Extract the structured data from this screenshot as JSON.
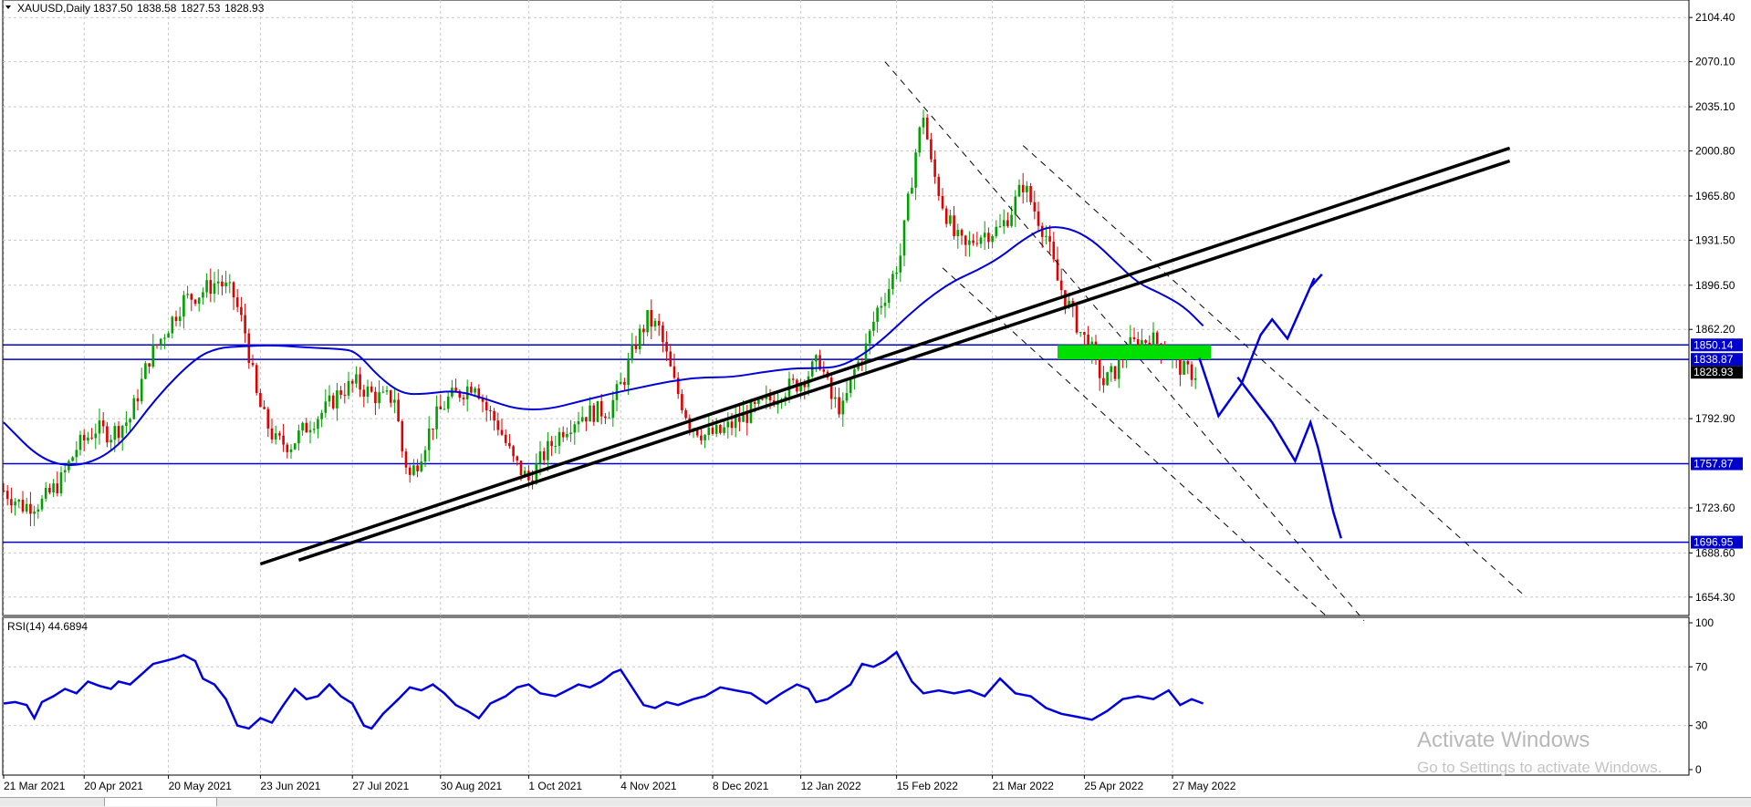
{
  "chart_data": [
    {
      "type": "candlestick",
      "header": {
        "symbol_tf": "XAUUSD,Daily",
        "open": "1837.50",
        "high": "1838.58",
        "low": "1827.53",
        "close": "1828.93"
      },
      "ylim": [
        1640,
        2118
      ],
      "y_ticks": [
        "2104.40",
        "2070.10",
        "2035.10",
        "2000.80",
        "1965.80",
        "1931.50",
        "1896.50",
        "1862.20",
        "1792.90",
        "1723.60",
        "1688.60",
        "1654.30"
      ],
      "x_ticks": [
        "21 Mar 2021",
        "20 Apr 2021",
        "20 May 2021",
        "23 Jun 2021",
        "27 Jul 2021",
        "30 Aug 2021",
        "1 Oct 2021",
        "4 Nov 2021",
        "8 Dec 2021",
        "12 Jan 2022",
        "15 Feb 2022",
        "21 Mar 2022",
        "25 Apr 2022",
        "27 May 2022"
      ],
      "x_tick_index": [
        0,
        21,
        43,
        67,
        91,
        114,
        137,
        161,
        185,
        208,
        233,
        258,
        282,
        305
      ],
      "close_path": [
        [
          0,
          1737
        ],
        [
          5,
          1725
        ],
        [
          10,
          1728
        ],
        [
          15,
          1745
        ],
        [
          19,
          1770
        ],
        [
          24,
          1785
        ],
        [
          28,
          1781
        ],
        [
          33,
          1793
        ],
        [
          38,
          1840
        ],
        [
          43,
          1865
        ],
        [
          47,
          1885
        ],
        [
          51,
          1890
        ],
        [
          56,
          1900
        ],
        [
          60,
          1888
        ],
        [
          63,
          1860
        ],
        [
          66,
          1810
        ],
        [
          68,
          1793
        ],
        [
          71,
          1775
        ],
        [
          75,
          1773
        ],
        [
          80,
          1790
        ],
        [
          84,
          1800
        ],
        [
          88,
          1815
        ],
        [
          92,
          1820
        ],
        [
          96,
          1812
        ],
        [
          99,
          1808
        ],
        [
          102,
          1810
        ],
        [
          104,
          1768
        ],
        [
          106,
          1748
        ],
        [
          108,
          1760
        ],
        [
          112,
          1790
        ],
        [
          116,
          1808
        ],
        [
          120,
          1815
        ],
        [
          123,
          1822
        ],
        [
          126,
          1800
        ],
        [
          129,
          1788
        ],
        [
          133,
          1760
        ],
        [
          137,
          1745
        ],
        [
          141,
          1765
        ],
        [
          146,
          1785
        ],
        [
          150,
          1795
        ],
        [
          154,
          1798
        ],
        [
          158,
          1800
        ],
        [
          162,
          1825
        ],
        [
          165,
          1852
        ],
        [
          168,
          1870
        ],
        [
          171,
          1862
        ],
        [
          175,
          1820
        ],
        [
          179,
          1790
        ],
        [
          183,
          1780
        ],
        [
          187,
          1782
        ],
        [
          191,
          1790
        ],
        [
          195,
          1798
        ],
        [
          199,
          1805
        ],
        [
          203,
          1815
        ],
        [
          207,
          1820
        ],
        [
          210,
          1828
        ],
        [
          213,
          1838
        ],
        [
          216,
          1808
        ],
        [
          219,
          1800
        ],
        [
          222,
          1830
        ],
        [
          225,
          1848
        ],
        [
          228,
          1878
        ],
        [
          231,
          1895
        ],
        [
          234,
          1920
        ],
        [
          236,
          1960
        ],
        [
          238,
          2000
        ],
        [
          240,
          2030
        ],
        [
          242,
          1990
        ],
        [
          245,
          1960
        ],
        [
          248,
          1935
        ],
        [
          251,
          1925
        ],
        [
          254,
          1935
        ],
        [
          257,
          1938
        ],
        [
          260,
          1940
        ],
        [
          263,
          1955
        ],
        [
          266,
          1975
        ],
        [
          269,
          1955
        ],
        [
          272,
          1935
        ],
        [
          275,
          1900
        ],
        [
          278,
          1880
        ],
        [
          281,
          1860
        ],
        [
          284,
          1845
        ],
        [
          287,
          1820
        ],
        [
          290,
          1830
        ],
        [
          293,
          1848
        ],
        [
          296,
          1852
        ],
        [
          299,
          1855
        ],
        [
          302,
          1850
        ],
        [
          305,
          1840
        ],
        [
          308,
          1830
        ],
        [
          311,
          1828
        ]
      ],
      "ma_path": [
        [
          0,
          1790
        ],
        [
          10,
          1760
        ],
        [
          20,
          1755
        ],
        [
          30,
          1770
        ],
        [
          40,
          1810
        ],
        [
          50,
          1840
        ],
        [
          56,
          1848
        ],
        [
          62,
          1849
        ],
        [
          70,
          1850
        ],
        [
          80,
          1848
        ],
        [
          88,
          1847
        ],
        [
          92,
          1845
        ],
        [
          98,
          1825
        ],
        [
          104,
          1812
        ],
        [
          110,
          1812
        ],
        [
          118,
          1815
        ],
        [
          126,
          1808
        ],
        [
          134,
          1800
        ],
        [
          142,
          1800
        ],
        [
          150,
          1806
        ],
        [
          158,
          1812
        ],
        [
          166,
          1817
        ],
        [
          174,
          1822
        ],
        [
          182,
          1825
        ],
        [
          190,
          1825
        ],
        [
          198,
          1829
        ],
        [
          206,
          1832
        ],
        [
          212,
          1832
        ],
        [
          218,
          1833
        ],
        [
          224,
          1842
        ],
        [
          230,
          1856
        ],
        [
          236,
          1873
        ],
        [
          242,
          1888
        ],
        [
          248,
          1900
        ],
        [
          254,
          1908
        ],
        [
          260,
          1918
        ],
        [
          266,
          1932
        ],
        [
          272,
          1942
        ],
        [
          278,
          1941
        ],
        [
          284,
          1932
        ],
        [
          290,
          1915
        ],
        [
          296,
          1898
        ],
        [
          302,
          1890
        ],
        [
          308,
          1880
        ],
        [
          313,
          1865
        ]
      ],
      "horizontal_levels": [
        {
          "label": "1850.14",
          "value": 1850.14
        },
        {
          "label": "1838.87",
          "value": 1838.87
        },
        {
          "label": "1757.87",
          "value": 1757.87
        },
        {
          "label": "1696.95",
          "value": 1696.95
        }
      ],
      "last_price_label": "1828.93",
      "trend_lines": [
        {
          "from": [
            67,
            1680
          ],
          "to": [
            393,
            2003
          ]
        },
        {
          "from": [
            77,
            1683
          ],
          "to": [
            393,
            1993
          ]
        }
      ],
      "channel_lines": [
        {
          "from": [
            230,
            2070
          ],
          "to": [
            355,
            1636
          ]
        },
        {
          "from": [
            266,
            2005
          ],
          "to": [
            397,
            1655
          ]
        },
        {
          "from": [
            245,
            1910
          ],
          "to": [
            345,
            1640
          ]
        }
      ],
      "zone": {
        "x": [
          275,
          315
        ],
        "y": [
          1839,
          1850
        ],
        "color": "#00e000"
      },
      "projection_path": [
        [
          312,
          1840
        ],
        [
          317,
          1795
        ],
        [
          323,
          1820
        ],
        [
          328,
          1858
        ],
        [
          331,
          1870
        ],
        [
          335,
          1855
        ],
        [
          342,
          1902
        ],
        [
          341,
          1895
        ],
        [
          344,
          1905
        ]
      ],
      "projection_path_2": [
        [
          322,
          1825
        ],
        [
          331,
          1790
        ],
        [
          337,
          1760
        ],
        [
          341,
          1790
        ],
        [
          343,
          1770
        ],
        [
          347,
          1720
        ],
        [
          349,
          1700
        ]
      ]
    },
    {
      "type": "line",
      "title": "RSI(14) 44.6894",
      "ylim": [
        0,
        100
      ],
      "y_ticks": [
        "100",
        "70",
        "30",
        "0"
      ],
      "values_path": [
        [
          0,
          45
        ],
        [
          3,
          46
        ],
        [
          6,
          44
        ],
        [
          8,
          35
        ],
        [
          10,
          46
        ],
        [
          13,
          50
        ],
        [
          16,
          55
        ],
        [
          19,
          52
        ],
        [
          22,
          60
        ],
        [
          25,
          57
        ],
        [
          28,
          55
        ],
        [
          30,
          60
        ],
        [
          33,
          58
        ],
        [
          36,
          65
        ],
        [
          39,
          72
        ],
        [
          42,
          74
        ],
        [
          45,
          76
        ],
        [
          47,
          78
        ],
        [
          50,
          74
        ],
        [
          52,
          62
        ],
        [
          55,
          58
        ],
        [
          58,
          48
        ],
        [
          61,
          30
        ],
        [
          64,
          28
        ],
        [
          67,
          35
        ],
        [
          70,
          32
        ],
        [
          73,
          44
        ],
        [
          76,
          55
        ],
        [
          79,
          48
        ],
        [
          82,
          50
        ],
        [
          85,
          58
        ],
        [
          88,
          50
        ],
        [
          91,
          45
        ],
        [
          94,
          30
        ],
        [
          96,
          28
        ],
        [
          99,
          38
        ],
        [
          103,
          48
        ],
        [
          106,
          56
        ],
        [
          109,
          54
        ],
        [
          112,
          58
        ],
        [
          115,
          52
        ],
        [
          118,
          44
        ],
        [
          121,
          40
        ],
        [
          124,
          35
        ],
        [
          127,
          45
        ],
        [
          131,
          50
        ],
        [
          134,
          56
        ],
        [
          137,
          58
        ],
        [
          140,
          52
        ],
        [
          144,
          50
        ],
        [
          147,
          54
        ],
        [
          150,
          58
        ],
        [
          153,
          56
        ],
        [
          156,
          60
        ],
        [
          159,
          66
        ],
        [
          161,
          68
        ],
        [
          164,
          56
        ],
        [
          167,
          44
        ],
        [
          170,
          42
        ],
        [
          173,
          46
        ],
        [
          176,
          44
        ],
        [
          180,
          48
        ],
        [
          183,
          50
        ],
        [
          187,
          56
        ],
        [
          191,
          54
        ],
        [
          195,
          52
        ],
        [
          199,
          45
        ],
        [
          203,
          52
        ],
        [
          207,
          58
        ],
        [
          210,
          55
        ],
        [
          212,
          46
        ],
        [
          215,
          48
        ],
        [
          218,
          53
        ],
        [
          221,
          58
        ],
        [
          224,
          72
        ],
        [
          227,
          70
        ],
        [
          230,
          74
        ],
        [
          233,
          80
        ],
        [
          235,
          70
        ],
        [
          237,
          60
        ],
        [
          240,
          52
        ],
        [
          244,
          54
        ],
        [
          248,
          52
        ],
        [
          252,
          54
        ],
        [
          256,
          50
        ],
        [
          260,
          62
        ],
        [
          264,
          52
        ],
        [
          268,
          50
        ],
        [
          272,
          42
        ],
        [
          276,
          38
        ],
        [
          280,
          36
        ],
        [
          284,
          34
        ],
        [
          288,
          40
        ],
        [
          292,
          48
        ],
        [
          296,
          50
        ],
        [
          300,
          48
        ],
        [
          304,
          54
        ],
        [
          307,
          44
        ],
        [
          310,
          48
        ],
        [
          313,
          45
        ]
      ],
      "levels": [
        70,
        30
      ]
    }
  ],
  "watermark": {
    "line1": "Activate Windows",
    "line2": "Go to Settings to activate Windows."
  },
  "colors": {
    "bull_candle": "#00a000",
    "bear_candle": "#e00000",
    "ma_line": "#0000dd",
    "level_line": "#0000cc",
    "level_box": "#0000cc",
    "last_price_box": "#000000",
    "trend": "#000000",
    "zone": "#00e000",
    "projection": "#0000dd",
    "rsi_line": "#0000dd",
    "grid": "#c8c8c8"
  }
}
